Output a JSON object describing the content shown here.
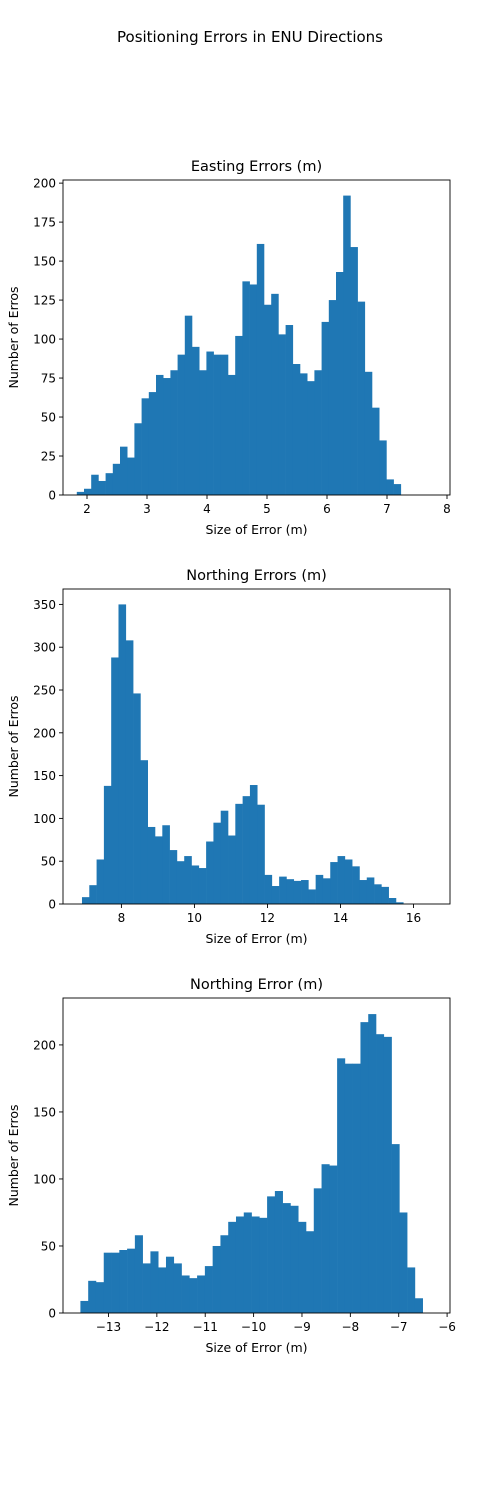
{
  "figure_title": "Positioning Errors in ENU Directions",
  "colors": {
    "bar": "#1f77b4",
    "axis": "#000000",
    "background": "#ffffff"
  },
  "chart_data": [
    {
      "type": "bar",
      "title": "Easting Errors (m)",
      "xlabel": "Size of Error (m)",
      "ylabel": "Number of Erros",
      "xlim": [
        1.6,
        8.05
      ],
      "ylim": [
        0,
        202
      ],
      "xticks": [
        2,
        3,
        4,
        5,
        6,
        7,
        8
      ],
      "yticks": [
        0,
        25,
        50,
        75,
        100,
        125,
        150,
        175,
        200
      ],
      "grid": false,
      "bin_start": 1.83,
      "bin_width": 0.12,
      "values": [
        2,
        4,
        13,
        9,
        14,
        20,
        31,
        24,
        46,
        62,
        66,
        77,
        75,
        80,
        90,
        115,
        95,
        80,
        92,
        90,
        90,
        77,
        102,
        137,
        135,
        161,
        122,
        129,
        103,
        109,
        84,
        78,
        73,
        80,
        111,
        125,
        143,
        192,
        159,
        124,
        79,
        56,
        35,
        10,
        7
      ]
    },
    {
      "type": "bar",
      "title": "Northing Errors (m)",
      "xlabel": "Size of Error (m)",
      "ylabel": "Number of Erros",
      "xlim": [
        6.4,
        17.0
      ],
      "ylim": [
        0,
        368
      ],
      "xticks": [
        8,
        10,
        12,
        14,
        16
      ],
      "yticks": [
        0,
        50,
        100,
        150,
        200,
        250,
        300,
        350
      ],
      "grid": false,
      "bin_start": 6.92,
      "bin_width": 0.2,
      "values": [
        8,
        22,
        52,
        138,
        288,
        350,
        308,
        246,
        168,
        90,
        79,
        92,
        63,
        50,
        56,
        45,
        42,
        73,
        95,
        109,
        80,
        117,
        126,
        139,
        116,
        34,
        21,
        32,
        29,
        27,
        28,
        17,
        34,
        30,
        49,
        56,
        52,
        44,
        28,
        31,
        23,
        20,
        7,
        2
      ]
    },
    {
      "type": "bar",
      "title": "Northing Error (m)",
      "xlabel": "Size of Error (m)",
      "ylabel": "Number of Erros",
      "xlim": [
        -13.94,
        -5.94
      ],
      "ylim": [
        0,
        235
      ],
      "xticks": [
        -13,
        -12,
        -11,
        -10,
        -9,
        -8,
        -7,
        -6
      ],
      "xtick_labels": [
        "−13",
        "−12",
        "−11",
        "−10",
        "−9",
        "−8",
        "−7",
        "−6"
      ],
      "yticks": [
        0,
        50,
        100,
        150,
        200
      ],
      "grid": false,
      "bin_start": -13.58,
      "bin_width": 0.1608,
      "values": [
        9,
        24,
        23,
        45,
        45,
        47,
        48,
        58,
        37,
        46,
        34,
        42,
        37,
        28,
        26,
        28,
        35,
        50,
        58,
        68,
        72,
        75,
        72,
        71,
        87,
        91,
        82,
        80,
        68,
        61,
        93,
        111,
        110,
        190,
        186,
        186,
        217,
        223,
        208,
        206,
        126,
        75,
        34,
        11
      ]
    }
  ]
}
